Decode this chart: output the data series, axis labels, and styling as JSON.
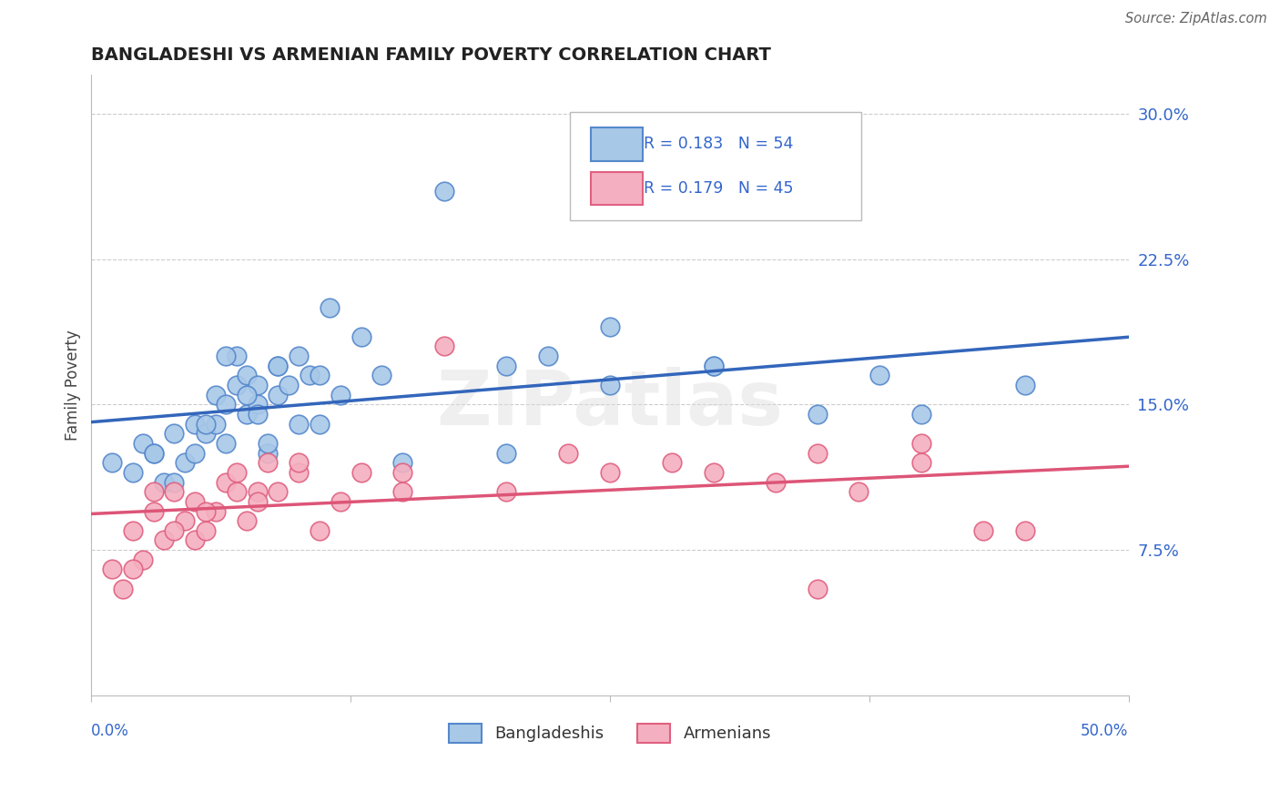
{
  "title": "BANGLADESHI VS ARMENIAN FAMILY POVERTY CORRELATION CHART",
  "source": "Source: ZipAtlas.com",
  "ylabel": "Family Poverty",
  "ytick_labels": [
    "7.5%",
    "15.0%",
    "22.5%",
    "30.0%"
  ],
  "ytick_values": [
    7.5,
    15.0,
    22.5,
    30.0
  ],
  "xmin": 0.0,
  "xmax": 50.0,
  "ymin": 0.0,
  "ymax": 32.0,
  "blue_R": 0.183,
  "blue_N": 54,
  "pink_R": 0.179,
  "pink_N": 45,
  "blue_fill": "#A8C8E8",
  "pink_fill": "#F4B0C0",
  "blue_edge": "#5588CC",
  "pink_edge": "#E06080",
  "blue_line_color": "#3366BB",
  "pink_line_color": "#DD5577",
  "text_blue": "#3366CC",
  "legend_label_blue": "Bangladeshis",
  "legend_label_pink": "Armenians",
  "blue_scatter_x": [
    1.0,
    2.0,
    2.5,
    3.0,
    3.5,
    4.0,
    4.5,
    5.0,
    5.0,
    5.5,
    6.0,
    6.0,
    6.5,
    6.5,
    7.0,
    7.0,
    7.5,
    7.5,
    8.0,
    8.0,
    8.0,
    8.5,
    9.0,
    9.0,
    9.5,
    10.0,
    10.5,
    11.0,
    11.5,
    13.0,
    15.0,
    17.0,
    20.0,
    22.0,
    25.0,
    30.0,
    35.0,
    38.0,
    40.0,
    45.0,
    3.0,
    4.0,
    5.5,
    6.5,
    7.5,
    8.5,
    9.0,
    10.0,
    11.0,
    12.0,
    14.0,
    20.0,
    25.0,
    30.0
  ],
  "blue_scatter_y": [
    12.0,
    11.5,
    13.0,
    12.5,
    11.0,
    13.5,
    12.0,
    14.0,
    12.5,
    13.5,
    14.0,
    15.5,
    15.0,
    13.0,
    16.0,
    17.5,
    14.5,
    16.5,
    15.0,
    16.0,
    14.5,
    12.5,
    15.5,
    17.0,
    16.0,
    14.0,
    16.5,
    14.0,
    20.0,
    18.5,
    12.0,
    26.0,
    12.5,
    17.5,
    19.0,
    17.0,
    14.5,
    16.5,
    14.5,
    16.0,
    12.5,
    11.0,
    14.0,
    17.5,
    15.5,
    13.0,
    17.0,
    17.5,
    16.5,
    15.5,
    16.5,
    17.0,
    16.0,
    17.0
  ],
  "pink_scatter_x": [
    1.0,
    1.5,
    2.0,
    2.5,
    3.0,
    3.5,
    4.0,
    4.5,
    5.0,
    5.0,
    5.5,
    6.0,
    6.5,
    7.0,
    7.5,
    8.0,
    8.5,
    9.0,
    10.0,
    11.0,
    12.0,
    13.0,
    15.0,
    17.0,
    20.0,
    23.0,
    25.0,
    28.0,
    30.0,
    33.0,
    35.0,
    37.0,
    40.0,
    43.0,
    45.0,
    2.0,
    3.0,
    4.0,
    5.5,
    7.0,
    8.0,
    10.0,
    15.0,
    35.0,
    40.0
  ],
  "pink_scatter_y": [
    6.5,
    5.5,
    8.5,
    7.0,
    9.5,
    8.0,
    10.5,
    9.0,
    10.0,
    8.0,
    8.5,
    9.5,
    11.0,
    10.5,
    9.0,
    10.5,
    12.0,
    10.5,
    11.5,
    8.5,
    10.0,
    11.5,
    10.5,
    18.0,
    10.5,
    12.5,
    11.5,
    12.0,
    11.5,
    11.0,
    12.5,
    10.5,
    13.0,
    8.5,
    8.5,
    6.5,
    10.5,
    8.5,
    9.5,
    11.5,
    10.0,
    12.0,
    11.5,
    5.5,
    12.0
  ]
}
